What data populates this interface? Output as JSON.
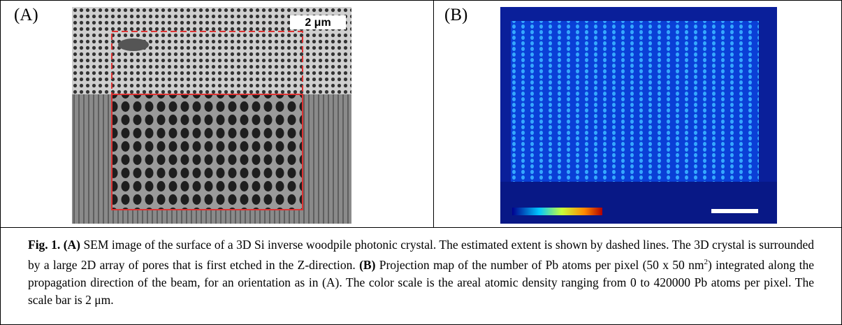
{
  "panels": [
    {
      "label": "(A)",
      "scale_label": "2 μm"
    },
    {
      "label": "(B)"
    }
  ],
  "caption": {
    "fig_label": "Fig. 1.",
    "a_label": "(A)",
    "a_text": "SEM image of the surface of a 3D Si inverse woodpile photonic crystal. The estimated extent is shown by dashed lines. The 3D crystal is surrounded by a large 2D array of pores that is first etched in the Z-direction.",
    "b_label": "(B)",
    "b_text_1": "Projection map of the number of Pb atoms per pixel (50 x 50 nm",
    "b_sup": "2",
    "b_text_2": ") integrated along the propagation direction of the beam, for an orientation as in (A). The color scale is the areal atomic density ranging from 0 to 420000 Pb atoms per pixel. The scale bar is 2 μm."
  }
}
